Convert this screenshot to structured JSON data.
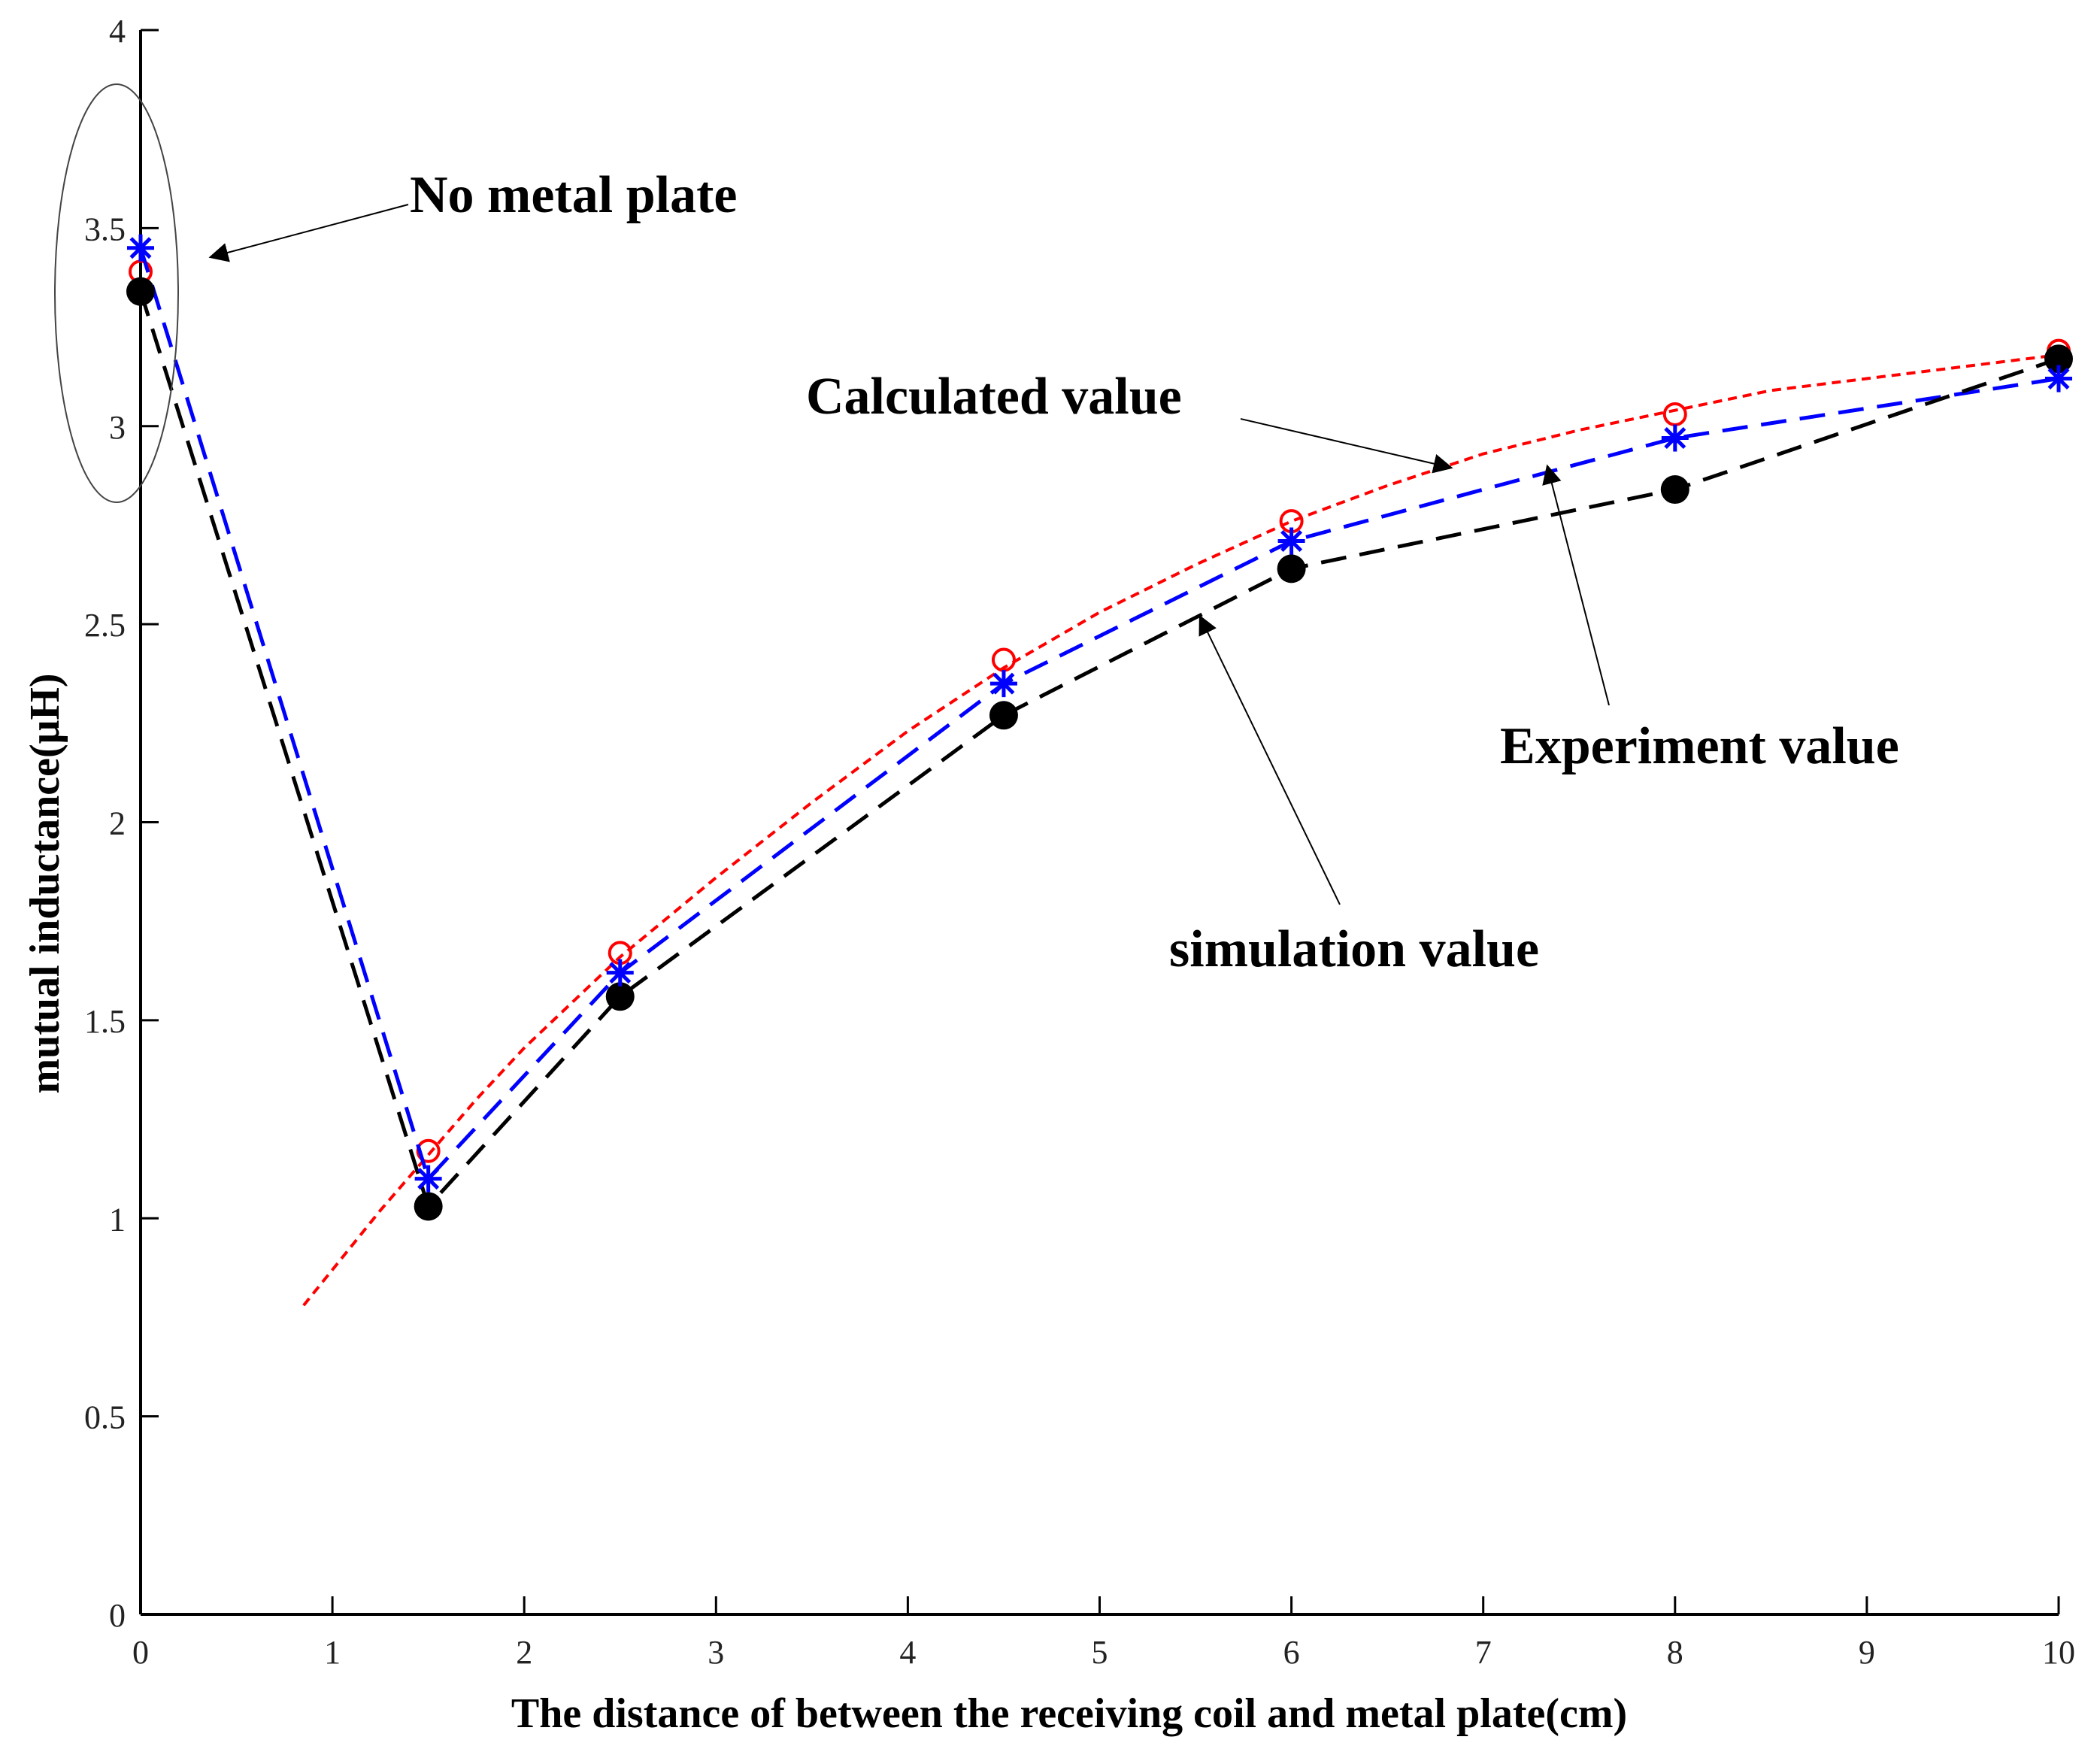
{
  "chart_data": {
    "type": "line",
    "title": "",
    "xlabel": "The distance of between the receiving coil and metal plate(cm)",
    "ylabel": "mutual inductance(μH)",
    "xlim": [
      0,
      10
    ],
    "ylim": [
      0,
      4
    ],
    "xticks": [
      0,
      1,
      2,
      3,
      4,
      5,
      6,
      7,
      8,
      9,
      10
    ],
    "yticks": [
      0,
      0.5,
      1,
      1.5,
      2,
      2.5,
      3,
      3.5,
      4
    ],
    "xtick_labels": [
      "0",
      "1",
      "2",
      "3",
      "4",
      "5",
      "6",
      "7",
      "8",
      "9",
      "10"
    ],
    "ytick_labels": [
      "0",
      "0.5",
      "1",
      "1.5",
      "2",
      "2.5",
      "3",
      "3.5",
      "4"
    ],
    "grid": false,
    "series": [
      {
        "name": "Calculated value",
        "color": "#ff0000",
        "marker": "circle-open",
        "line": "dotted",
        "curve": {
          "x": [
            0.85,
            1.0,
            1.25,
            1.5,
            1.75,
            2.0,
            2.5,
            3.0,
            3.5,
            4.0,
            4.5,
            5.0,
            5.5,
            6.0,
            6.5,
            7.0,
            7.5,
            8.0,
            8.5,
            9.0,
            9.5,
            10.0
          ],
          "y": [
            0.78,
            0.87,
            1.02,
            1.16,
            1.3,
            1.43,
            1.66,
            1.86,
            2.05,
            2.23,
            2.39,
            2.53,
            2.65,
            2.76,
            2.85,
            2.93,
            2.99,
            3.04,
            3.09,
            3.12,
            3.15,
            3.18
          ]
        },
        "markers": {
          "x": [
            0,
            1.5,
            2.5,
            4.5,
            6,
            8,
            10
          ],
          "y": [
            3.39,
            1.17,
            1.67,
            2.41,
            2.76,
            3.03,
            3.19
          ]
        }
      },
      {
        "name": "Experiment value",
        "color": "#0000ff",
        "marker": "asterisk",
        "line": "dashed",
        "x": [
          0,
          1.5,
          2.5,
          4.5,
          6,
          8,
          10
        ],
        "y": [
          3.45,
          1.1,
          1.62,
          2.35,
          2.71,
          2.97,
          3.12
        ]
      },
      {
        "name": "simulation value",
        "color": "#000000",
        "marker": "circle-filled",
        "line": "dashed",
        "x": [
          0,
          1.5,
          2.5,
          4.5,
          6,
          8,
          10
        ],
        "y": [
          3.34,
          1.03,
          1.56,
          2.27,
          2.64,
          2.84,
          3.17
        ]
      }
    ],
    "annotations": [
      {
        "text": "No metal plate",
        "target": "circled points at x=0"
      },
      {
        "text": "Calculated value",
        "target": "red dotted curve"
      },
      {
        "text": "Experiment value",
        "target": "blue dashed line"
      },
      {
        "text": "simulation value",
        "target": "black dashed line"
      }
    ]
  }
}
